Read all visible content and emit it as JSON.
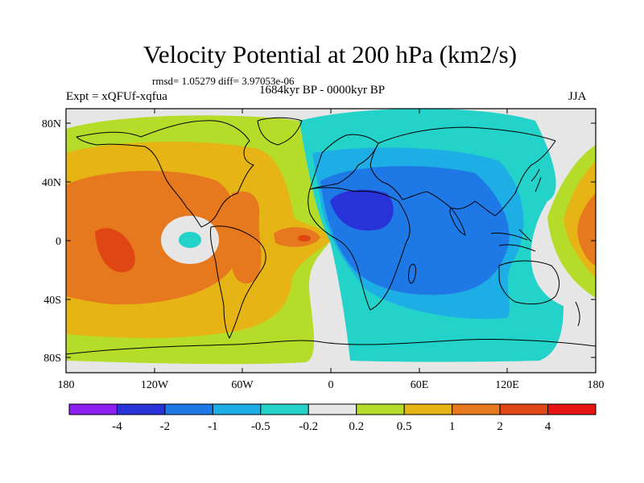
{
  "title": "Velocity Potential at 200 hPa (km2/s)",
  "stats": "rmsd= 1.05279  diff= 3.97053e-06",
  "period": "1684kyr BP - 0000kyr BP",
  "experiment": "Expt = xQFUf-xqfua",
  "season": "JJA",
  "lat_ticks": [
    "80N",
    "40N",
    "0",
    "40S",
    "80S"
  ],
  "lon_ticks": [
    "180",
    "120W",
    "60W",
    "0",
    "60E",
    "120E",
    "180"
  ],
  "colorbar": {
    "labels": [
      "-4",
      "-2",
      "-1",
      "-0.5",
      "-0.2",
      "0.2",
      "0.5",
      "1",
      "2",
      "4"
    ],
    "colors": [
      "#8c1ef0",
      "#2832d8",
      "#1e78e6",
      "#1eaee6",
      "#23d2c8",
      "#e6e6e6",
      "#b4dc28",
      "#e6b414",
      "#e6781e",
      "#e04614",
      "#e61414"
    ]
  },
  "map_colors": {
    "land": "#000000",
    "background": "#e6e6e6"
  }
}
